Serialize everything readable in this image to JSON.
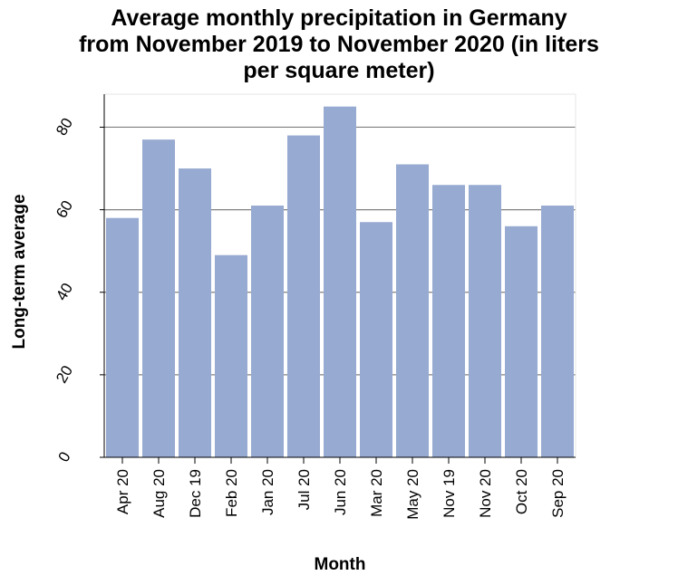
{
  "chart_data": {
    "type": "bar",
    "title": "Average monthly precipitation in Germany\nfrom November 2019 to November 2020 (in liters\nper square meter)",
    "xlabel": "Month",
    "ylabel": "Long-term average",
    "categories": [
      "Apr 20",
      "Aug 20",
      "Dec 19",
      "Feb 20",
      "Jan 20",
      "Jul 20",
      "Jun 20",
      "Mar 20",
      "May 20",
      "Nov 19",
      "Nov 20",
      "Oct 20",
      "Sep 20"
    ],
    "values": [
      58,
      77,
      70,
      49,
      61,
      78,
      85,
      57,
      71,
      66,
      66,
      56,
      61
    ],
    "ylim": [
      0,
      88
    ],
    "yticks": [
      0,
      20,
      40,
      60,
      80
    ],
    "grid": true,
    "colors": {
      "bar": "#97aad1",
      "grid": "#808080",
      "axis": "#000000"
    }
  }
}
